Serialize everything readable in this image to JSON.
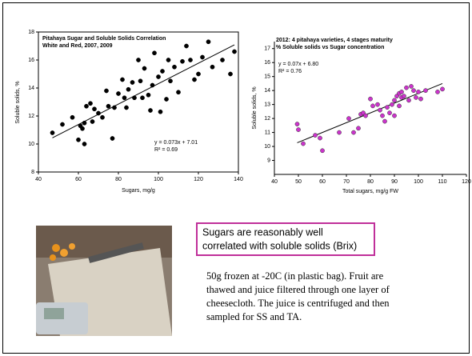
{
  "chart_data": [
    {
      "type": "scatter",
      "title": [
        "Pitahaya Sugar and Soluble Solids Correlation",
        "White and Red, 2007, 2009"
      ],
      "x_label": "Sugars, mg/g",
      "y_label": "Soluble solids, %",
      "annotation": [
        "y = 0.073x + 7.01",
        "R² = 0.69"
      ],
      "trendline": {
        "slope": 0.073,
        "intercept": 7.01
      },
      "color": "#000000",
      "x": [
        47,
        52,
        57,
        60,
        61,
        62,
        63,
        63,
        64,
        66,
        67,
        68,
        70,
        72,
        74,
        75,
        77,
        78,
        80,
        82,
        83,
        84,
        85,
        87,
        88,
        90,
        91,
        92,
        93,
        95,
        96,
        97,
        98,
        100,
        101,
        102,
        104,
        105,
        106,
        108,
        110,
        112,
        114,
        116,
        118,
        120,
        122,
        125,
        127,
        132,
        136,
        138
      ],
      "values": [
        10.8,
        11.4,
        11.9,
        10.3,
        11.3,
        11.1,
        11.5,
        10.0,
        12.7,
        12.9,
        11.6,
        12.5,
        12.2,
        11.9,
        13.8,
        12.7,
        10.4,
        12.6,
        13.6,
        14.6,
        13.3,
        12.6,
        13.9,
        14.4,
        13.3,
        16.0,
        14.5,
        13.3,
        15.4,
        13.5,
        12.4,
        14.2,
        16.5,
        14.8,
        12.3,
        15.2,
        13.2,
        16.0,
        14.5,
        15.5,
        13.7,
        15.9,
        17.0,
        16.0,
        14.6,
        15.0,
        16.2,
        17.3,
        15.5,
        16.0,
        15.0,
        16.6
      ],
      "xlim": [
        40,
        140
      ],
      "xticks": [
        40,
        60,
        80,
        100,
        120,
        140
      ],
      "ylim": [
        8,
        18
      ],
      "yticks": [
        8,
        10,
        12,
        14,
        16,
        18
      ]
    },
    {
      "type": "scatter",
      "title": [
        "2012: 4 pitahaya varieties, 4 stages maturity",
        "% Soluble solids vs Sugar concentration"
      ],
      "x_label": "Total sugars, mg/g FW",
      "y_label": "Soluble solids, %",
      "annotation": [
        "y = 0.07x + 6.80",
        "R² = 0.76"
      ],
      "trendline": {
        "slope": 0.07,
        "intercept": 6.8
      },
      "color": "#cc33cc",
      "x": [
        49.5,
        50,
        52,
        57,
        59,
        60,
        67,
        71,
        73,
        75,
        76,
        77,
        78,
        80,
        81,
        83,
        84,
        85,
        86,
        87,
        88,
        89,
        90,
        90,
        91,
        92,
        92,
        93,
        93,
        94,
        95,
        96,
        97,
        98,
        99,
        100,
        101,
        103,
        108,
        110
      ],
      "values": [
        11.6,
        11.2,
        10.2,
        10.8,
        10.6,
        9.7,
        11.0,
        12.0,
        11.0,
        11.3,
        12.3,
        12.4,
        12.2,
        13.4,
        12.9,
        13.0,
        12.6,
        12.2,
        11.8,
        12.8,
        12.4,
        13.0,
        12.2,
        13.3,
        13.6,
        13.8,
        12.9,
        13.5,
        13.9,
        13.6,
        14.2,
        13.3,
        14.3,
        14.0,
        13.5,
        13.9,
        13.4,
        14.0,
        13.9,
        14.1
      ],
      "xlim": [
        40,
        120
      ],
      "xticks": [
        40,
        50,
        60,
        70,
        80,
        90,
        100,
        110,
        120
      ],
      "ylim": [
        8,
        17.5
      ],
      "yticks": [
        9,
        10,
        11,
        12,
        13,
        14,
        15,
        16,
        17
      ]
    }
  ],
  "callout": [
    "Sugars are reasonably well",
    "correlated with soluble solids (Brix)"
  ],
  "body_text": [
    "50g frozen at -20C (in plastic bag). Fruit are",
    "thawed and juice filtered through one layer of",
    "cheesecloth.   The juice is centrifuged and then",
    "sampled for SS and TA."
  ]
}
